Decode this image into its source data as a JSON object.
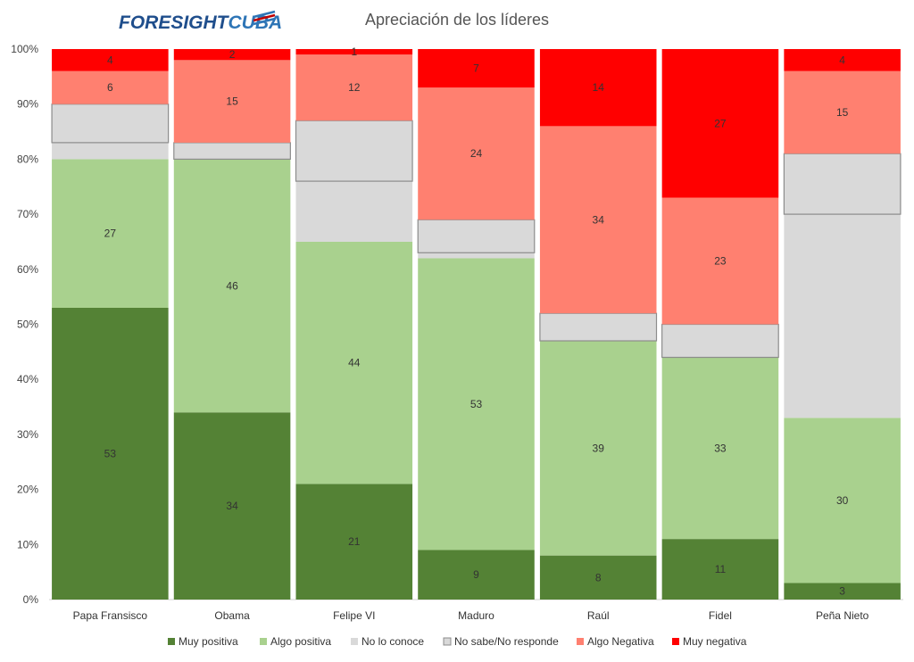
{
  "brand": {
    "name_part1": "FORESIGHT",
    "name_part2": "CUBA",
    "color_dark": "#1f4e8c",
    "color_light": "#2e75b6",
    "flag_red": "#c00000"
  },
  "chart_data": {
    "type": "bar",
    "stacked": true,
    "title": "Apreciación de los líderes",
    "xlabel": "",
    "ylabel": "",
    "ylim": [
      0,
      100
    ],
    "y_ticks": [
      "0%",
      "10%",
      "20%",
      "30%",
      "40%",
      "50%",
      "60%",
      "70%",
      "80%",
      "90%",
      "100%"
    ],
    "grid": false,
    "legend_position": "bottom",
    "categories": [
      "Papa Fransisco",
      "Obama",
      "Felipe VI",
      "Maduro",
      "Raúl",
      "Fidel",
      "Peña Nieto"
    ],
    "series": [
      {
        "name": "Muy positiva",
        "color": "#548235",
        "values": [
          53,
          34,
          21,
          9,
          8,
          11,
          3
        ],
        "labeled": true
      },
      {
        "name": "Algo positiva",
        "color": "#a9d18e",
        "values": [
          27,
          46,
          44,
          53,
          39,
          33,
          30
        ],
        "labeled": true
      },
      {
        "name": "No lo conoce",
        "color": "#d9d9d9",
        "values": [
          3,
          0,
          11,
          1,
          0,
          0,
          37
        ],
        "labeled": false
      },
      {
        "name": "No sabe/No responde",
        "color": "#d9d9d9",
        "outlined": true,
        "values": [
          7,
          3,
          11,
          6,
          5,
          6,
          11
        ],
        "labeled": false
      },
      {
        "name": "Algo Negativa",
        "color": "#ff8070",
        "values": [
          6,
          15,
          12,
          24,
          34,
          23,
          15
        ],
        "labeled": true
      },
      {
        "name": "Muy negativa",
        "color": "#ff0000",
        "values": [
          4,
          2,
          1,
          7,
          14,
          27,
          4
        ],
        "labeled": true
      }
    ]
  }
}
